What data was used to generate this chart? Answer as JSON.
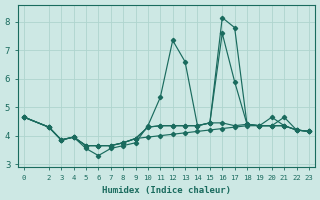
{
  "xlabel": "Humidex (Indice chaleur)",
  "background_color": "#cde8e4",
  "grid_color": "#afd4ce",
  "line_color": "#1a6b5e",
  "xlim": [
    -0.5,
    23.5
  ],
  "ylim": [
    2.9,
    8.6
  ],
  "yticks": [
    3,
    4,
    5,
    6,
    7,
    8
  ],
  "xticks": [
    0,
    2,
    3,
    4,
    5,
    6,
    7,
    8,
    9,
    10,
    11,
    12,
    13,
    14,
    15,
    16,
    17,
    18,
    19,
    20,
    21,
    22,
    23
  ],
  "series": [
    {
      "x": [
        0,
        2,
        3,
        4,
        5,
        6,
        7,
        8,
        9,
        10,
        11,
        12,
        13,
        14,
        15,
        16,
        17,
        18,
        19,
        20,
        21,
        22,
        23
      ],
      "y": [
        4.65,
        4.3,
        3.85,
        3.95,
        3.55,
        3.3,
        3.55,
        3.65,
        3.75,
        4.35,
        5.35,
        7.35,
        6.6,
        4.35,
        4.45,
        8.15,
        7.8,
        4.4,
        4.35,
        4.35,
        4.65,
        4.2,
        4.15
      ]
    },
    {
      "x": [
        0,
        2,
        3,
        4,
        5,
        6,
        7,
        8,
        9,
        10,
        11,
        12,
        13,
        14,
        15,
        16,
        17,
        18,
        19,
        20,
        21,
        22,
        23
      ],
      "y": [
        4.65,
        4.3,
        3.85,
        3.95,
        3.65,
        3.65,
        3.65,
        3.75,
        3.9,
        4.3,
        4.35,
        4.35,
        4.35,
        4.35,
        4.45,
        7.6,
        5.9,
        4.4,
        4.35,
        4.65,
        4.35,
        4.2,
        4.15
      ]
    },
    {
      "x": [
        0,
        2,
        3,
        4,
        5,
        6,
        7,
        8,
        9,
        10,
        11,
        12,
        13,
        14,
        15,
        16,
        17,
        18,
        19,
        20,
        21,
        22,
        23
      ],
      "y": [
        4.65,
        4.3,
        3.85,
        3.95,
        3.65,
        3.65,
        3.65,
        3.75,
        3.9,
        4.3,
        4.35,
        4.35,
        4.35,
        4.35,
        4.45,
        4.45,
        4.35,
        4.4,
        4.35,
        4.35,
        4.35,
        4.2,
        4.15
      ]
    },
    {
      "x": [
        0,
        2,
        3,
        4,
        5,
        6,
        7,
        8,
        9,
        10,
        11,
        12,
        13,
        14,
        15,
        16,
        17,
        18,
        19,
        20,
        21,
        22,
        23
      ],
      "y": [
        4.65,
        4.3,
        3.85,
        3.95,
        3.65,
        3.65,
        3.65,
        3.75,
        3.9,
        3.95,
        4.0,
        4.05,
        4.1,
        4.15,
        4.2,
        4.25,
        4.3,
        4.35,
        4.35,
        4.35,
        4.35,
        4.2,
        4.15
      ]
    }
  ]
}
